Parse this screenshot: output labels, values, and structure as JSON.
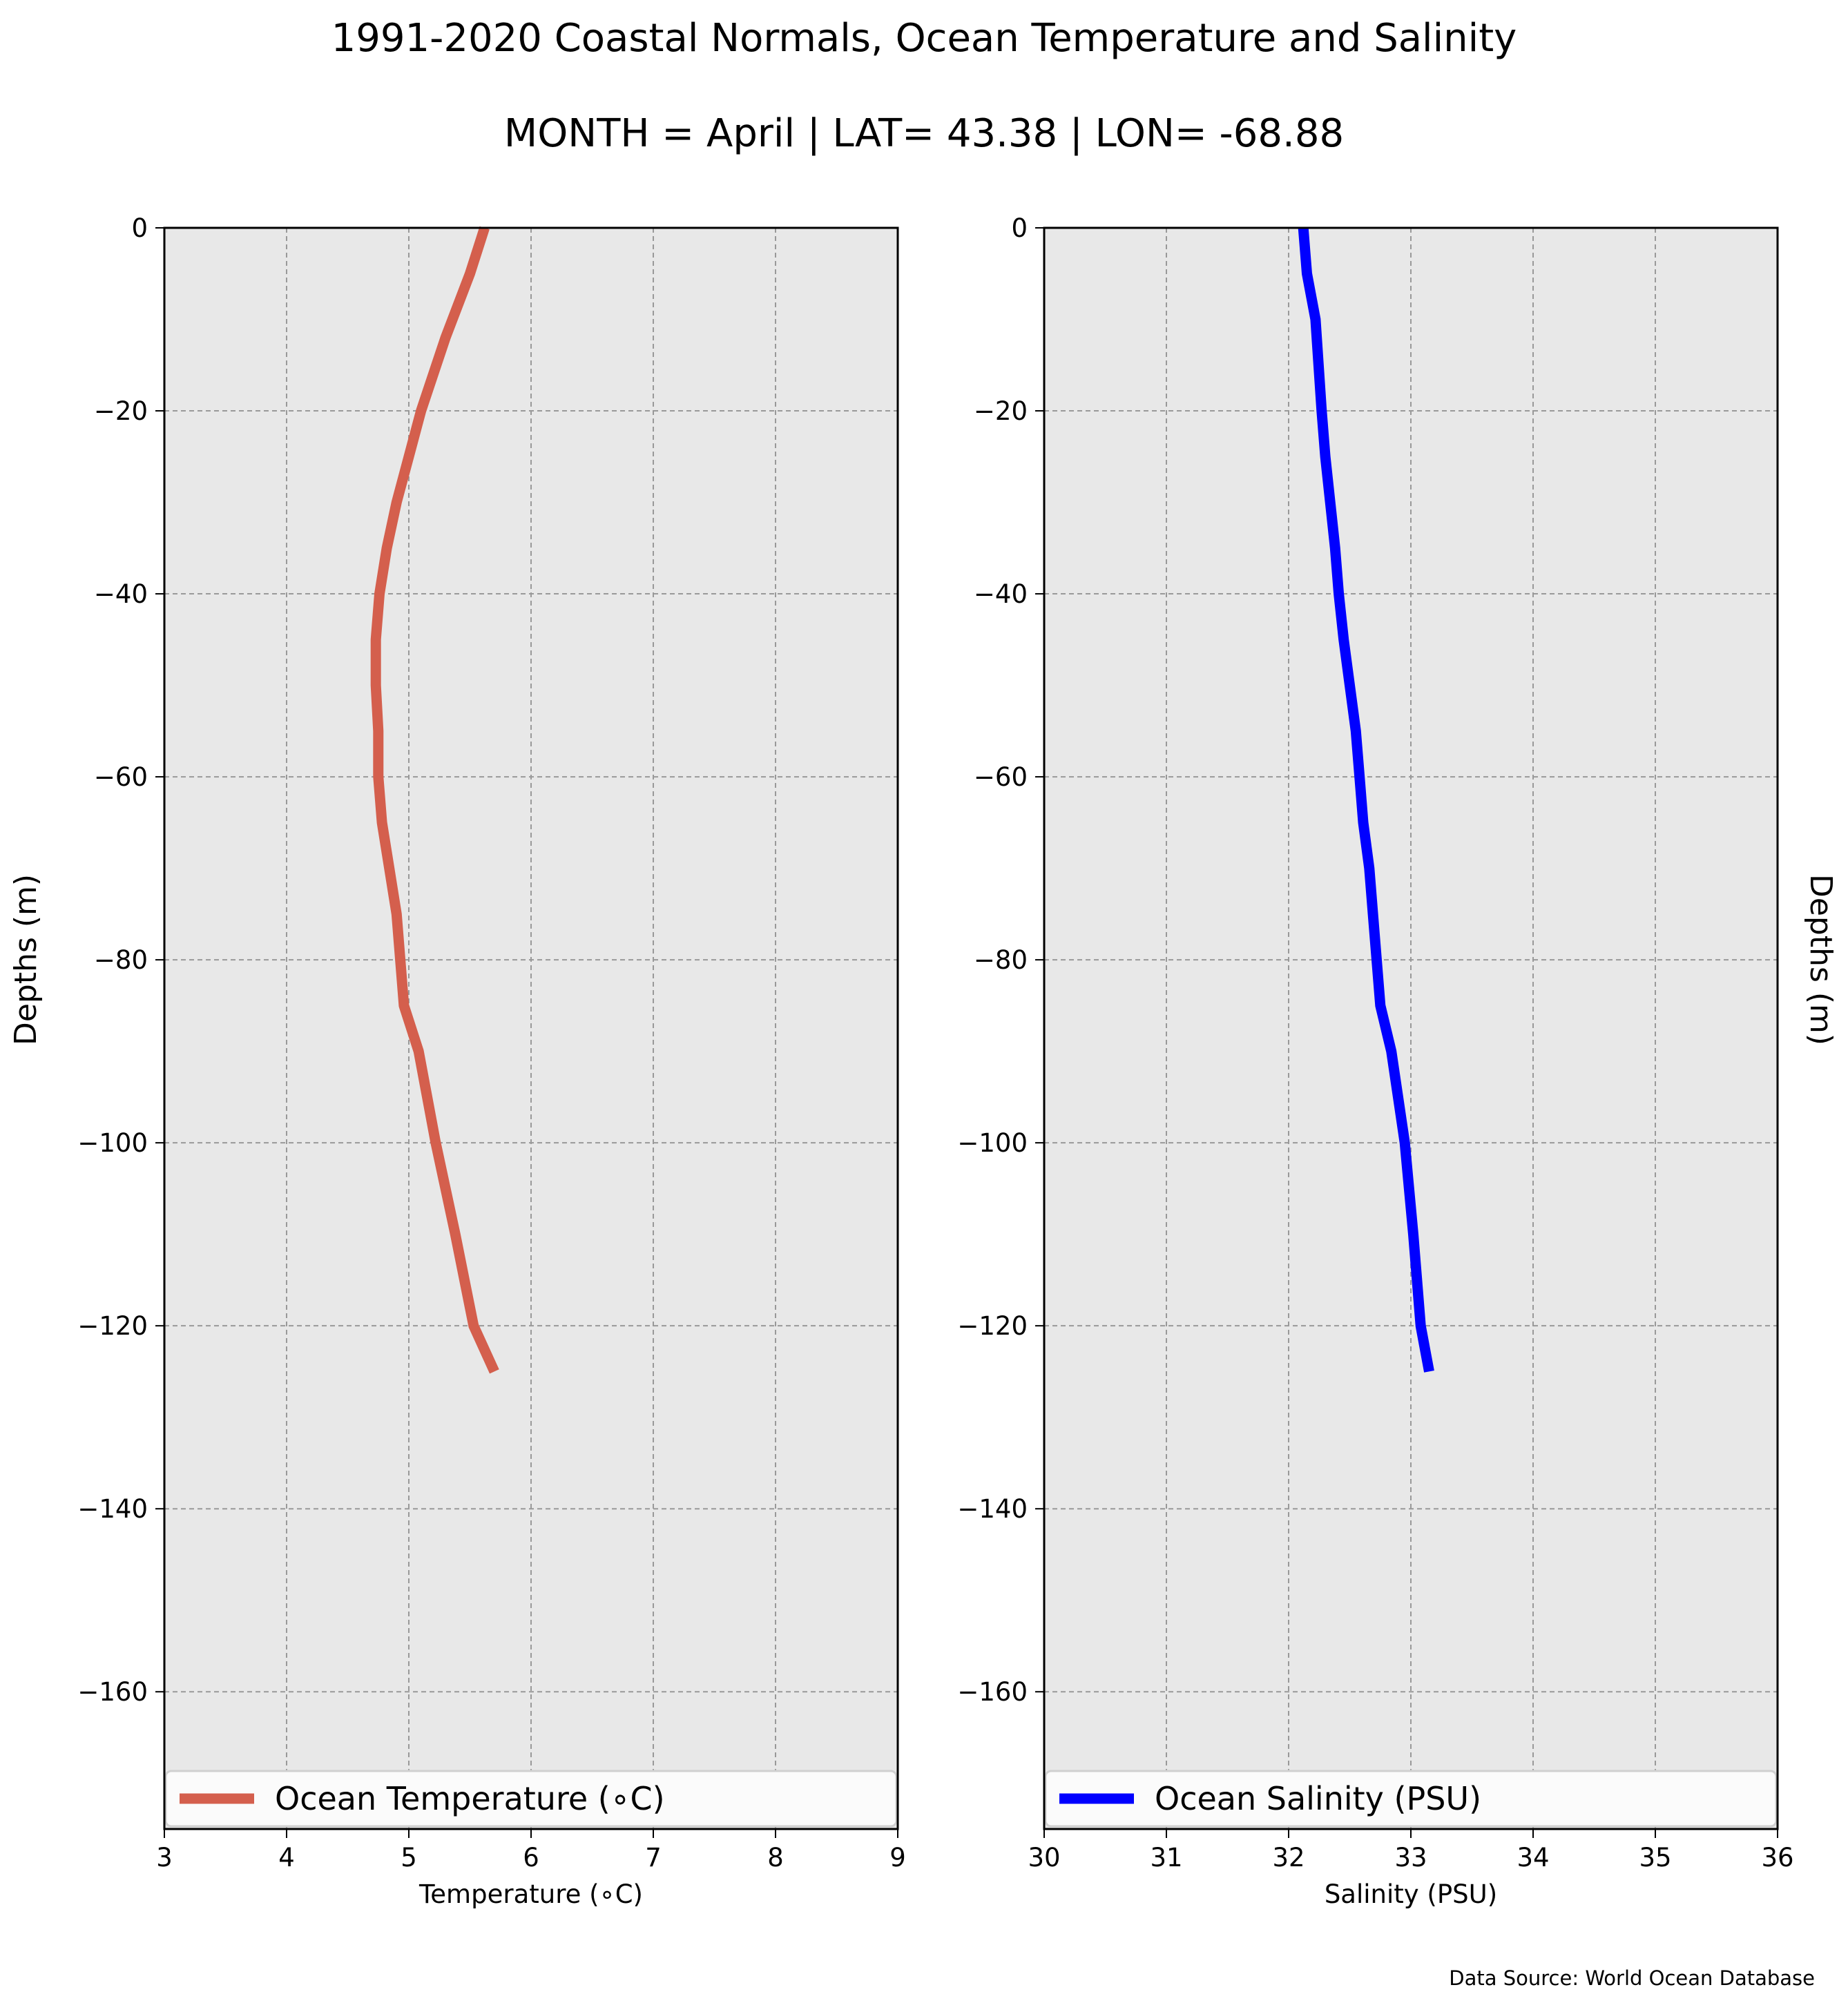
{
  "figure": {
    "title_line1": "1991-2020 Coastal Normals, Ocean Temperature and Salinity",
    "title_line2": "MONTH = April | LAT= 43.38 | LON= -68.88",
    "source": "Data Source: World Ocean Database",
    "background": "#ffffff",
    "plot_background": "#e8e8e8",
    "grid_color": "#999999"
  },
  "chart_data": [
    {
      "type": "line",
      "xlabel": "Temperature (∘C)",
      "ylabel": "Depths (m)",
      "ylabel_side": "left",
      "xlim": [
        3,
        9
      ],
      "ylim": [
        -175,
        0
      ],
      "xticks": [
        3,
        4,
        5,
        6,
        7,
        8,
        9
      ],
      "xtick_labels": [
        "3",
        "4",
        "5",
        "6",
        "7",
        "8",
        "9"
      ],
      "yticks": [
        0,
        -20,
        -40,
        -60,
        -80,
        -100,
        -120,
        -140,
        -160
      ],
      "ytick_labels": [
        "0",
        "−20",
        "−40",
        "−60",
        "−80",
        "−100",
        "−120",
        "−140",
        "−160"
      ],
      "grid": true,
      "legend_position": "lower center",
      "series": [
        {
          "name": "Ocean Temperature (∘C)",
          "color": "#d45f4d",
          "x": [
            5.62,
            5.5,
            5.3,
            5.1,
            5.0,
            4.9,
            4.82,
            4.76,
            4.73,
            4.73,
            4.75,
            4.75,
            4.78,
            4.84,
            4.9,
            4.96,
            5.08,
            5.22,
            5.38,
            5.53,
            5.7
          ],
          "y": [
            0,
            -5,
            -12,
            -20,
            -25,
            -30,
            -35,
            -40,
            -45,
            -50,
            -55,
            -60,
            -65,
            -70,
            -75,
            -85,
            -90,
            -100,
            -110,
            -120,
            -125
          ]
        }
      ]
    },
    {
      "type": "line",
      "xlabel": "Salinity (PSU)",
      "ylabel": "Depths (m)",
      "ylabel_side": "right",
      "xlim": [
        30,
        36
      ],
      "ylim": [
        -175,
        0
      ],
      "xticks": [
        30,
        31,
        32,
        33,
        34,
        35,
        36
      ],
      "xtick_labels": [
        "30",
        "31",
        "32",
        "33",
        "34",
        "35",
        "36"
      ],
      "yticks": [
        0,
        -20,
        -40,
        -60,
        -80,
        -100,
        -120,
        -140,
        -160
      ],
      "ytick_labels": [
        "0",
        "−20",
        "−40",
        "−60",
        "−80",
        "−100",
        "−120",
        "−140",
        "−160"
      ],
      "grid": true,
      "legend_position": "lower center",
      "series": [
        {
          "name": "Ocean Salinity (PSU)",
          "color": "#0000ff",
          "x": [
            32.12,
            32.15,
            32.22,
            32.27,
            32.3,
            32.34,
            32.38,
            32.41,
            32.45,
            32.5,
            32.55,
            32.58,
            32.61,
            32.66,
            32.69,
            32.75,
            32.84,
            32.95,
            33.02,
            33.08,
            33.15
          ],
          "y": [
            0,
            -5,
            -10,
            -20,
            -25,
            -30,
            -35,
            -40,
            -45,
            -50,
            -55,
            -60,
            -65,
            -70,
            -75,
            -85,
            -90,
            -100,
            -110,
            -120,
            -125
          ]
        }
      ]
    }
  ]
}
